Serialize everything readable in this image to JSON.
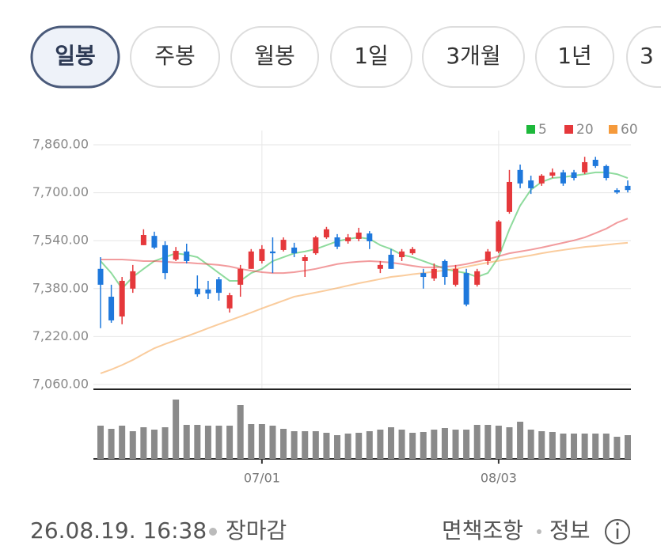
{
  "tabs": [
    "일봉",
    "주봉",
    "월봉",
    "1일",
    "3개월",
    "1년",
    "3"
  ],
  "chart_data": {
    "type": "candlestick",
    "categories": [
      null,
      null,
      null,
      null,
      null,
      null,
      null,
      null,
      null,
      null,
      null,
      null,
      null,
      null,
      null,
      "07/01",
      null,
      null,
      null,
      null,
      null,
      null,
      null,
      null,
      null,
      null,
      null,
      null,
      null,
      null,
      null,
      null,
      null,
      null,
      null,
      null,
      null,
      "08/03",
      null,
      null,
      null,
      null,
      null,
      null,
      null,
      null,
      null,
      null,
      null,
      null
    ],
    "open": [
      7446,
      7353,
      7287,
      7380,
      7525,
      7556,
      7525,
      7477,
      7504,
      7380,
      7377,
      7411,
      7314,
      7393,
      7446,
      7472,
      7504,
      7509,
      7517,
      7472,
      7498,
      7551,
      7551,
      7538,
      7546,
      7564,
      7446,
      7493,
      7485,
      7498,
      7432,
      7414,
      7472,
      7393,
      7432,
      7393,
      7472,
      7504,
      7636,
      7776,
      7741,
      7731,
      7757,
      7768,
      7768,
      7768,
      7810,
      7789,
      7709,
      7723
    ],
    "high": [
      7485,
      7393,
      7419,
      7459,
      7578,
      7570,
      7538,
      7519,
      7530,
      7424,
      7406,
      7419,
      7366,
      7459,
      7512,
      7525,
      7551,
      7551,
      7533,
      7493,
      7556,
      7586,
      7562,
      7562,
      7583,
      7572,
      7472,
      7512,
      7512,
      7519,
      7446,
      7464,
      7477,
      7459,
      7446,
      7446,
      7512,
      7609,
      7776,
      7794,
      7757,
      7762,
      7781,
      7776,
      7776,
      7820,
      7820,
      7794,
      7715,
      7741
    ],
    "low": [
      7248,
      7266,
      7261,
      7366,
      7525,
      7512,
      7411,
      7472,
      7464,
      7353,
      7345,
      7340,
      7300,
      7353,
      7446,
      7464,
      7432,
      7504,
      7485,
      7419,
      7493,
      7546,
      7512,
      7530,
      7538,
      7512,
      7432,
      7446,
      7472,
      7493,
      7380,
      7406,
      7393,
      7387,
      7321,
      7387,
      7459,
      7498,
      7630,
      7715,
      7696,
      7723,
      7749,
      7723,
      7741,
      7762,
      7783,
      7741,
      7696,
      7701
    ],
    "close": [
      7393,
      7274,
      7406,
      7438,
      7559,
      7517,
      7432,
      7506,
      7472,
      7361,
      7364,
      7366,
      7358,
      7446,
      7504,
      7512,
      7498,
      7543,
      7498,
      7485,
      7551,
      7578,
      7520,
      7551,
      7567,
      7538,
      7459,
      7446,
      7504,
      7512,
      7419,
      7446,
      7419,
      7446,
      7327,
      7438,
      7504,
      7604,
      7736,
      7731,
      7715,
      7757,
      7768,
      7731,
      7749,
      7802,
      7789,
      7749,
      7701,
      7709
    ],
    "up_color": "#e5383b",
    "down_color": "#1e78dc",
    "series": [
      {
        "name": "5",
        "color": "#1db83b",
        "values": [
          7472,
          7432,
          7380,
          7419,
          7446,
          7472,
          7485,
          7498,
          7493,
          7485,
          7459,
          7432,
          7406,
          7406,
          7432,
          7446,
          7472,
          7485,
          7498,
          7504,
          7512,
          7525,
          7538,
          7546,
          7551,
          7546,
          7525,
          7512,
          7493,
          7485,
          7472,
          7459,
          7446,
          7438,
          7432,
          7419,
          7432,
          7485,
          7578,
          7657,
          7710,
          7736,
          7749,
          7752,
          7757,
          7762,
          7768,
          7768,
          7762,
          7749
        ]
      },
      {
        "name": "20",
        "color": "#e5383b",
        "values": [
          7477,
          7477,
          7477,
          7475,
          7472,
          7472,
          7470,
          7467,
          7467,
          7464,
          7462,
          7459,
          7454,
          7446,
          7440,
          7435,
          7432,
          7432,
          7435,
          7440,
          7446,
          7454,
          7462,
          7467,
          7470,
          7472,
          7470,
          7467,
          7462,
          7456,
          7451,
          7451,
          7453,
          7456,
          7462,
          7470,
          7478,
          7488,
          7498,
          7504,
          7510,
          7517,
          7525,
          7533,
          7541,
          7551,
          7565,
          7580,
          7600,
          7614
        ]
      },
      {
        "name": "60",
        "color": "#f59a3b",
        "values": [
          7097,
          7110,
          7125,
          7142,
          7162,
          7181,
          7195,
          7208,
          7221,
          7234,
          7248,
          7261,
          7274,
          7287,
          7300,
          7314,
          7327,
          7340,
          7353,
          7360,
          7367,
          7374,
          7382,
          7390,
          7398,
          7405,
          7412,
          7419,
          7423,
          7428,
          7432,
          7437,
          7441,
          7446,
          7453,
          7460,
          7467,
          7473,
          7479,
          7485,
          7491,
          7498,
          7504,
          7509,
          7514,
          7519,
          7522,
          7526,
          7530,
          7533
        ]
      }
    ],
    "volume": [
      42,
      38,
      42,
      35,
      40,
      37,
      40,
      75,
      43,
      43,
      42,
      42,
      42,
      68,
      44,
      44,
      42,
      38,
      35,
      35,
      35,
      33,
      30,
      32,
      33,
      35,
      37,
      40,
      37,
      33,
      34,
      37,
      39,
      37,
      37,
      43,
      43,
      42,
      40,
      47,
      37,
      35,
      34,
      32,
      32,
      32,
      32,
      32,
      28,
      30
    ],
    "volume_ylim": [
      0,
      80
    ],
    "ylim": [
      7060,
      7860
    ],
    "yticks": [
      {
        "value": 7860,
        "label": "7,860.00"
      },
      {
        "value": 7700,
        "label": "7,700.00"
      },
      {
        "value": 7540,
        "label": "7,540.00"
      },
      {
        "value": 7380,
        "label": "7,380.00"
      },
      {
        "value": 7220,
        "label": "7,220.00"
      },
      {
        "value": 7060,
        "label": "7,060.00"
      }
    ],
    "grid": true
  },
  "footer": {
    "timestamp": "26.08.19. 16:38",
    "status": "장마감",
    "disclaimer": "면책조항",
    "info": "정보"
  }
}
